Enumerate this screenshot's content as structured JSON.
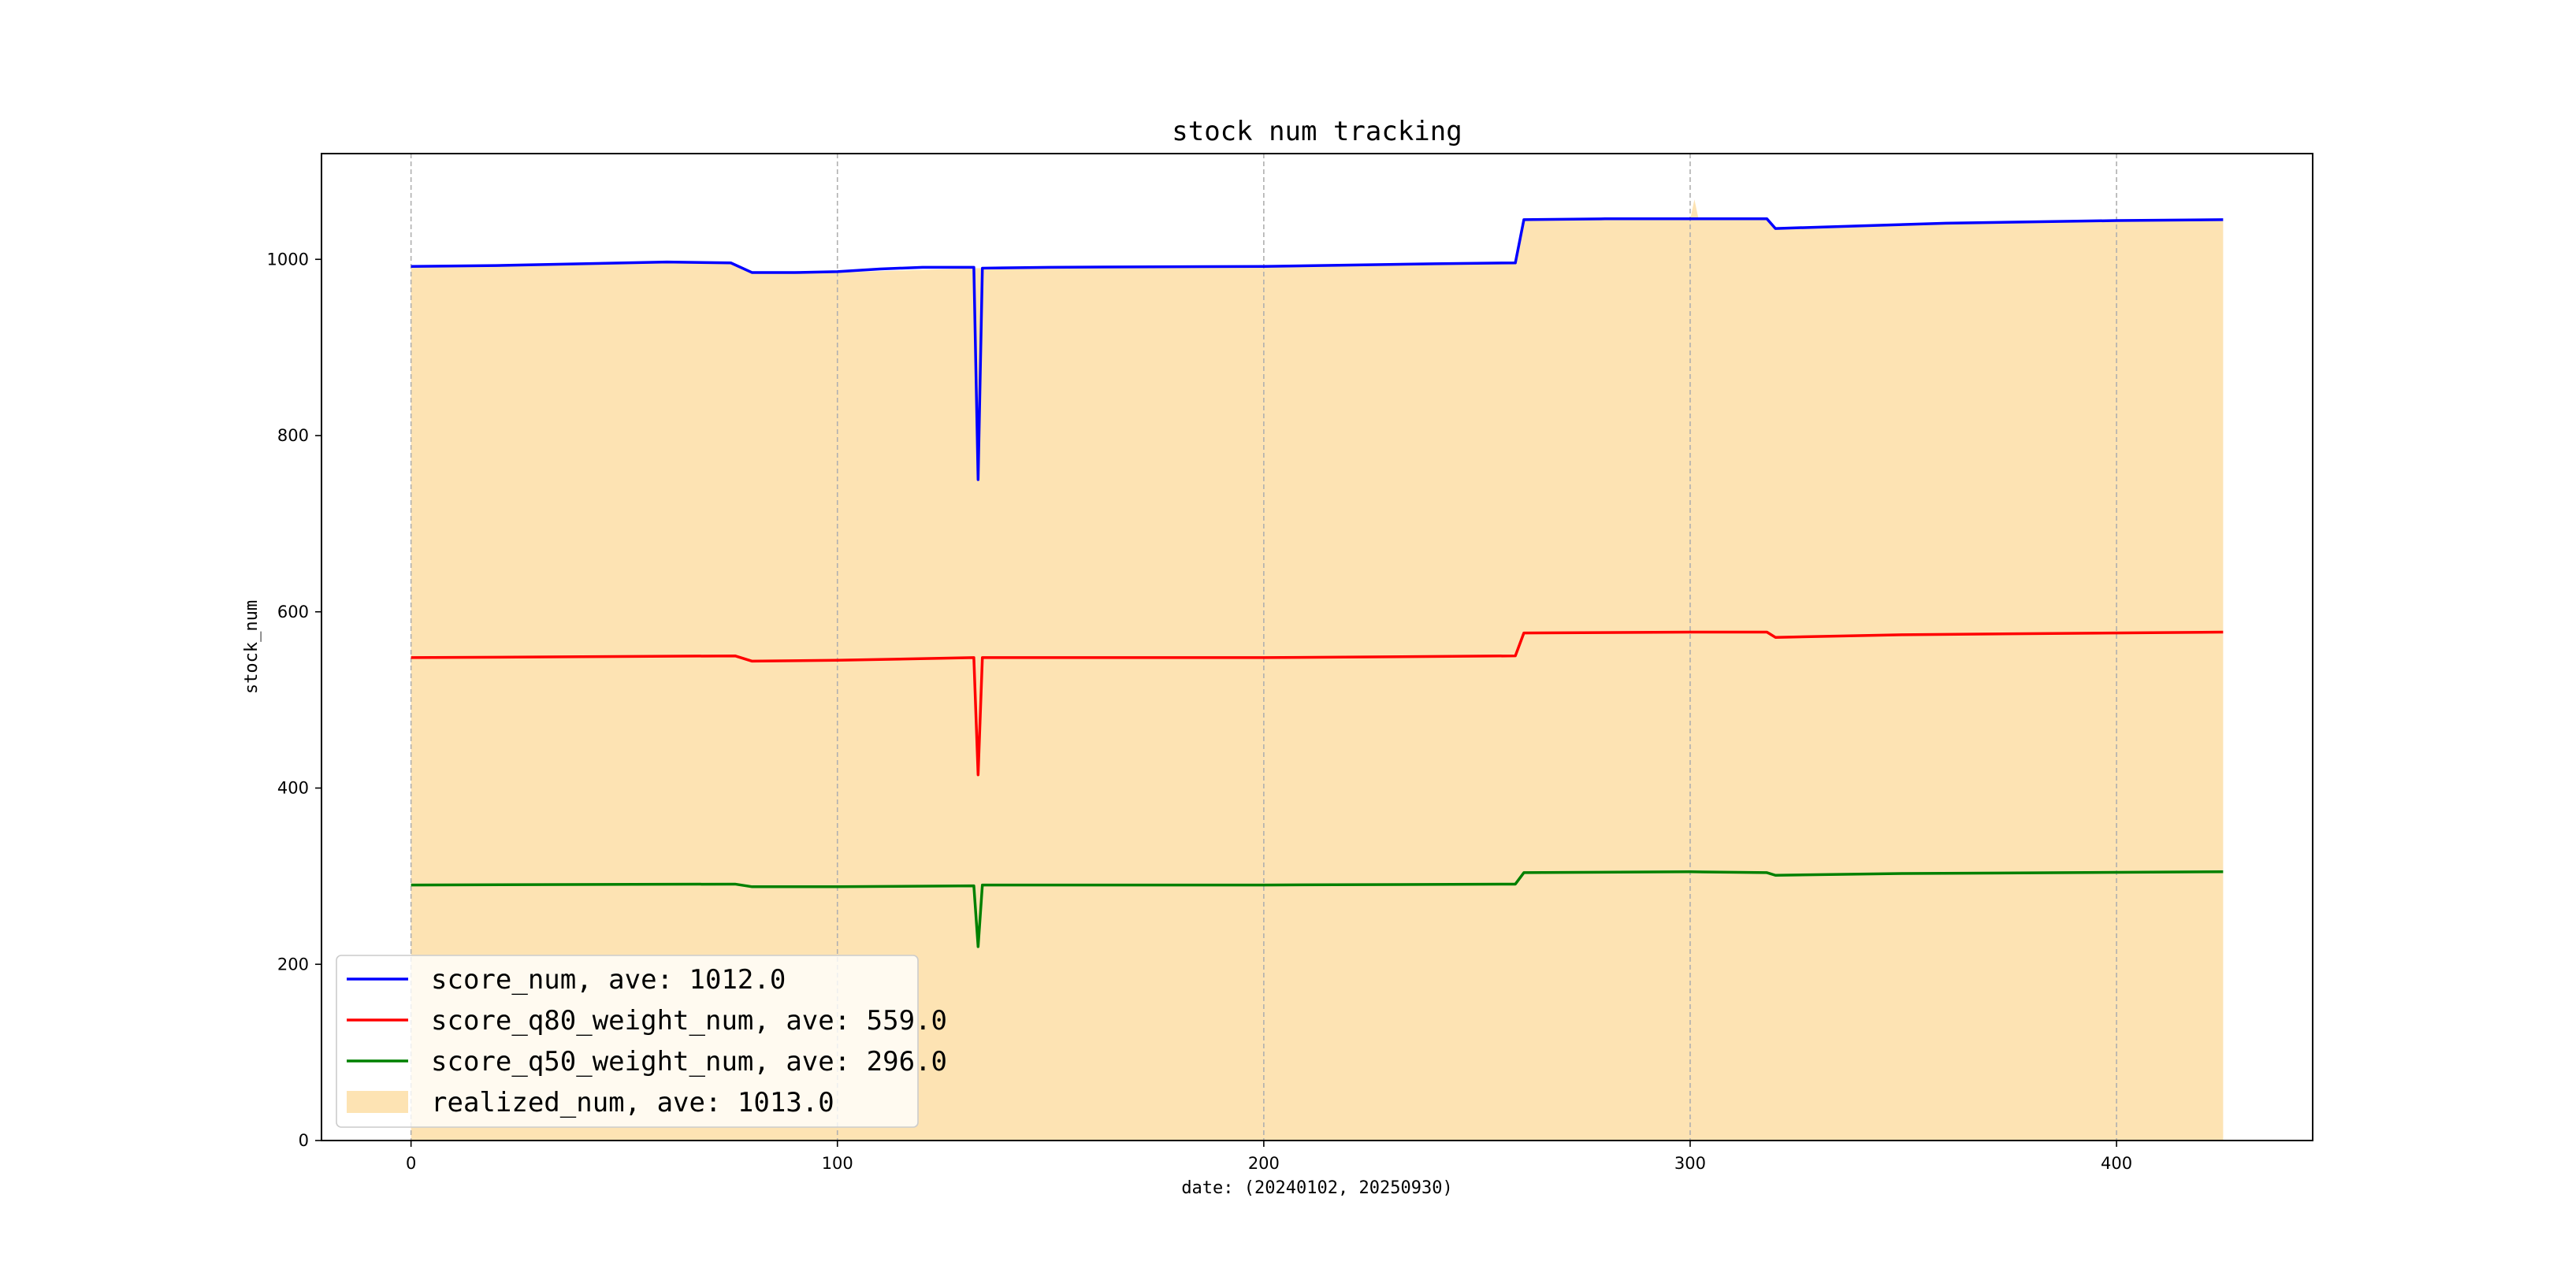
{
  "chart_data": {
    "type": "line",
    "title": "stock num tracking",
    "xlabel": "date: (20240102, 20250930)",
    "ylabel": "stock_num",
    "xlim": [
      -21,
      446
    ],
    "ylim": [
      0,
      1120
    ],
    "x_ticks": [
      "0",
      "100",
      "200",
      "300",
      "400"
    ],
    "y_ticks": [
      "0",
      "200",
      "400",
      "600",
      "800",
      "1000"
    ],
    "grid": "x-dashed",
    "legend_position": "lower-left",
    "series": [
      {
        "name": "score_num",
        "legend_label": "score_num, ave: 1012.0",
        "kind": "line",
        "color": "#0000ff",
        "points": [
          [
            0,
            992
          ],
          [
            20,
            993
          ],
          [
            40,
            995
          ],
          [
            60,
            997
          ],
          [
            75,
            996
          ],
          [
            80,
            985
          ],
          [
            90,
            985
          ],
          [
            100,
            986
          ],
          [
            110,
            989
          ],
          [
            120,
            991
          ],
          [
            132,
            991
          ],
          [
            133,
            750
          ],
          [
            134,
            990
          ],
          [
            150,
            991
          ],
          [
            200,
            992
          ],
          [
            240,
            995
          ],
          [
            259,
            996
          ],
          [
            261,
            1045
          ],
          [
            280,
            1046
          ],
          [
            300,
            1046
          ],
          [
            318,
            1046
          ],
          [
            320,
            1035
          ],
          [
            340,
            1038
          ],
          [
            360,
            1041
          ],
          [
            400,
            1044
          ],
          [
            425,
            1045
          ]
        ]
      },
      {
        "name": "score_q80_weight_num",
        "legend_label": "score_q80_weight_num, ave: 559.0",
        "kind": "line",
        "color": "#ff0000",
        "points": [
          [
            0,
            548
          ],
          [
            40,
            549
          ],
          [
            76,
            550
          ],
          [
            80,
            544
          ],
          [
            100,
            545
          ],
          [
            132,
            548
          ],
          [
            133,
            415
          ],
          [
            134,
            548
          ],
          [
            200,
            548
          ],
          [
            259,
            550
          ],
          [
            261,
            576
          ],
          [
            300,
            577
          ],
          [
            318,
            577
          ],
          [
            320,
            571
          ],
          [
            350,
            574
          ],
          [
            425,
            577
          ]
        ]
      },
      {
        "name": "score_q50_weight_num",
        "legend_label": "score_q50_weight_num, ave: 296.0",
        "kind": "line",
        "color": "#008000",
        "points": [
          [
            0,
            290
          ],
          [
            76,
            291
          ],
          [
            80,
            288
          ],
          [
            100,
            288
          ],
          [
            132,
            289
          ],
          [
            133,
            220
          ],
          [
            134,
            290
          ],
          [
            200,
            290
          ],
          [
            259,
            291
          ],
          [
            261,
            304
          ],
          [
            300,
            305
          ],
          [
            318,
            304
          ],
          [
            320,
            301
          ],
          [
            350,
            303
          ],
          [
            425,
            305
          ]
        ]
      },
      {
        "name": "realized_num",
        "legend_label": "realized_num, ave: 1013.0",
        "kind": "area",
        "color": "#fde3b3",
        "points": [
          [
            0,
            991
          ],
          [
            20,
            992
          ],
          [
            40,
            994
          ],
          [
            60,
            996
          ],
          [
            75,
            995
          ],
          [
            80,
            984
          ],
          [
            100,
            985
          ],
          [
            132,
            990
          ],
          [
            133,
            990
          ],
          [
            150,
            990
          ],
          [
            200,
            991
          ],
          [
            259,
            995
          ],
          [
            261,
            1044
          ],
          [
            300,
            1045
          ],
          [
            301,
            1068
          ],
          [
            302,
            1045
          ],
          [
            318,
            1045
          ],
          [
            320,
            1034
          ],
          [
            360,
            1040
          ],
          [
            400,
            1043
          ],
          [
            425,
            1044
          ]
        ]
      }
    ]
  }
}
